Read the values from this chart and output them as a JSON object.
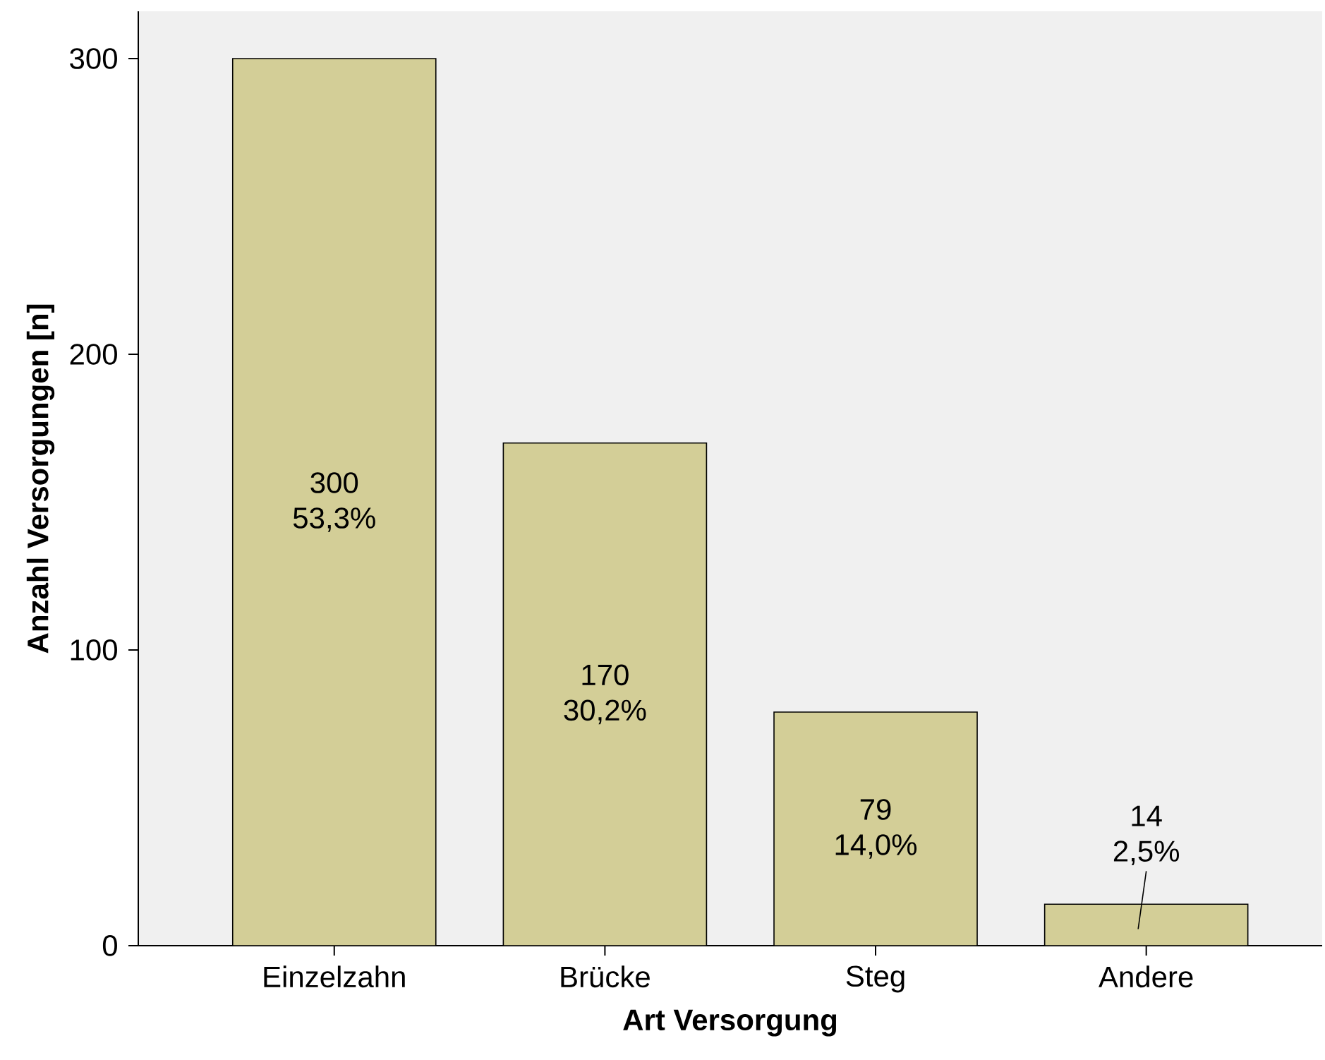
{
  "chart_data": {
    "type": "bar",
    "xlabel": "Art Versorgung",
    "ylabel": "Anzahl Versorgungen [n]",
    "categories": [
      "Einzelzahn",
      "Brücke",
      "Steg",
      "Andere"
    ],
    "values": [
      300,
      170,
      79,
      14
    ],
    "color": "#d3ce97",
    "value_labels": [
      "300 53,3%",
      "170 30,2%",
      "79 14,0%",
      "14 2,5%"
    ],
    "ylim": [
      0,
      316
    ],
    "yticks": [
      0,
      100,
      200,
      300
    ]
  }
}
